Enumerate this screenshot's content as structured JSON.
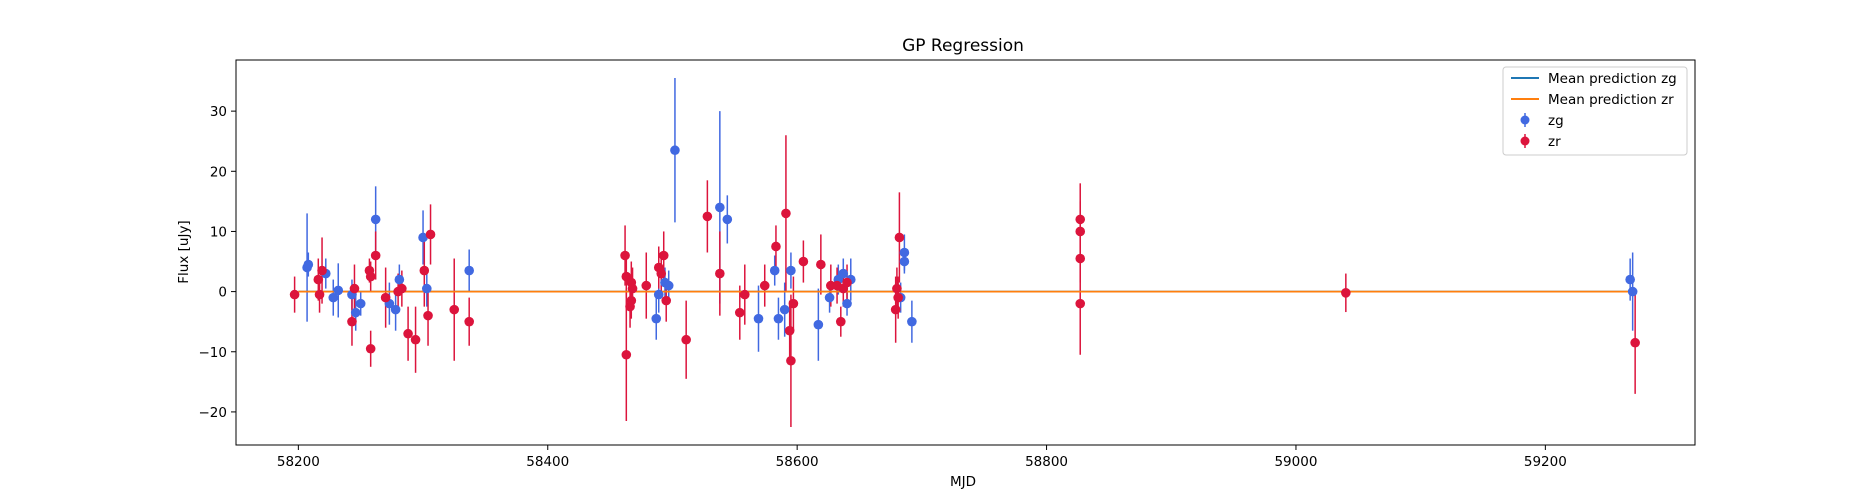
{
  "chart_data": {
    "type": "scatter",
    "title": "GP Regression",
    "xlabel": "MJD",
    "ylabel": "Flux [uJy]",
    "xlim": [
      58150,
      59320
    ],
    "ylim": [
      -25.5,
      38.5
    ],
    "xticks": [
      58200,
      58400,
      58600,
      58800,
      59000,
      59200
    ],
    "yticks": [
      -20,
      -10,
      0,
      10,
      20,
      30
    ],
    "grid": false,
    "legend_position": "top-right",
    "lines": [
      {
        "name": "Mean prediction zg",
        "color": "#1f77b4",
        "x": [
          58200,
          59270
        ],
        "y": [
          0,
          0
        ]
      },
      {
        "name": "Mean prediction zr",
        "color": "#ff7f0e",
        "x": [
          58200,
          59270
        ],
        "y": [
          0,
          0
        ]
      }
    ],
    "series": [
      {
        "name": "zg",
        "color": "#4169e1",
        "points": [
          {
            "x": 58207,
            "y": 4.0,
            "err": 9.0
          },
          {
            "x": 58208,
            "y": 4.5,
            "err": 2.0
          },
          {
            "x": 58222,
            "y": 3.0,
            "err": 2.5
          },
          {
            "x": 58228,
            "y": -1.0,
            "err": 3.0
          },
          {
            "x": 58232,
            "y": 0.2,
            "err": 4.5
          },
          {
            "x": 58243,
            "y": -0.5,
            "err": 2.5
          },
          {
            "x": 58246,
            "y": -3.5,
            "err": 3.0
          },
          {
            "x": 58250,
            "y": -2.0,
            "err": 2.0
          },
          {
            "x": 58262,
            "y": 12.0,
            "err": 5.5
          },
          {
            "x": 58273,
            "y": -2.0,
            "err": 3.5
          },
          {
            "x": 58278,
            "y": -3.0,
            "err": 3.5
          },
          {
            "x": 58281,
            "y": 2.0,
            "err": 2.5
          },
          {
            "x": 58300,
            "y": 9.0,
            "err": 4.5
          },
          {
            "x": 58303,
            "y": 0.5,
            "err": 3.0
          },
          {
            "x": 58337,
            "y": 3.5,
            "err": 3.5
          },
          {
            "x": 58487,
            "y": -4.5,
            "err": 3.5
          },
          {
            "x": 58489,
            "y": -0.5,
            "err": 3.0
          },
          {
            "x": 58494,
            "y": 1.5,
            "err": 2.5
          },
          {
            "x": 58497,
            "y": 1.0,
            "err": 2.5
          },
          {
            "x": 58502,
            "y": 23.5,
            "err": 12.0
          },
          {
            "x": 58538,
            "y": 14.0,
            "err": 16.0
          },
          {
            "x": 58544,
            "y": 12.0,
            "err": 4.0
          },
          {
            "x": 58569,
            "y": -4.5,
            "err": 5.5
          },
          {
            "x": 58582,
            "y": 3.5,
            "err": 2.5
          },
          {
            "x": 58585,
            "y": -4.5,
            "err": 3.5
          },
          {
            "x": 58590,
            "y": -3.0,
            "err": 4.5
          },
          {
            "x": 58595,
            "y": 3.5,
            "err": 3.0
          },
          {
            "x": 58617,
            "y": -5.5,
            "err": 6.0
          },
          {
            "x": 58626,
            "y": -1.0,
            "err": 2.5
          },
          {
            "x": 58633,
            "y": 2.0,
            "err": 2.5
          },
          {
            "x": 58637,
            "y": 3.0,
            "err": 2.5
          },
          {
            "x": 58640,
            "y": -2.0,
            "err": 2.0
          },
          {
            "x": 58643,
            "y": 2.0,
            "err": 3.5
          },
          {
            "x": 58683,
            "y": -1.0,
            "err": 2.5
          },
          {
            "x": 58686,
            "y": 6.5,
            "err": 3.0
          },
          {
            "x": 58686,
            "y": 5.0,
            "err": 2.0
          },
          {
            "x": 58692,
            "y": -5.0,
            "err": 3.5
          },
          {
            "x": 59268,
            "y": 2.0,
            "err": 3.5
          },
          {
            "x": 59270,
            "y": 0.0,
            "err": 6.5
          }
        ]
      },
      {
        "name": "zr",
        "color": "#dc143c",
        "points": [
          {
            "x": 58197,
            "y": -0.5,
            "err": 3.0
          },
          {
            "x": 58216,
            "y": 2.0,
            "err": 3.5
          },
          {
            "x": 58217,
            "y": -0.5,
            "err": 3.0
          },
          {
            "x": 58219,
            "y": 3.5,
            "err": 5.5
          },
          {
            "x": 58243,
            "y": -5.0,
            "err": 4.0
          },
          {
            "x": 58245,
            "y": 0.5,
            "err": 4.0
          },
          {
            "x": 58257,
            "y": 3.5,
            "err": 2.0
          },
          {
            "x": 58258,
            "y": 2.5,
            "err": 2.5
          },
          {
            "x": 58258,
            "y": -9.5,
            "err": 3.0
          },
          {
            "x": 58262,
            "y": 6.0,
            "err": 4.0
          },
          {
            "x": 58270,
            "y": -1.0,
            "err": 5.0
          },
          {
            "x": 58280,
            "y": 0.0,
            "err": 3.0
          },
          {
            "x": 58283,
            "y": 0.5,
            "err": 3.0
          },
          {
            "x": 58288,
            "y": -7.0,
            "err": 4.5
          },
          {
            "x": 58294,
            "y": -8.0,
            "err": 5.5
          },
          {
            "x": 58301,
            "y": 3.5,
            "err": 6.0
          },
          {
            "x": 58304,
            "y": -4.0,
            "err": 5.0
          },
          {
            "x": 58306,
            "y": 9.5,
            "err": 5.0
          },
          {
            "x": 58325,
            "y": -3.0,
            "err": 8.5
          },
          {
            "x": 58337,
            "y": -5.0,
            "err": 4.0
          },
          {
            "x": 58462,
            "y": 6.0,
            "err": 5.0
          },
          {
            "x": 58463,
            "y": 2.5,
            "err": 3.5
          },
          {
            "x": 58463,
            "y": -10.5,
            "err": 11.0
          },
          {
            "x": 58466,
            "y": -2.5,
            "err": 3.5
          },
          {
            "x": 58467,
            "y": 1.5,
            "err": 3.5
          },
          {
            "x": 58467,
            "y": -1.5,
            "err": 3.0
          },
          {
            "x": 58468,
            "y": 0.5,
            "err": 3.5
          },
          {
            "x": 58479,
            "y": 1.0,
            "err": 5.5
          },
          {
            "x": 58489,
            "y": 4.0,
            "err": 3.5
          },
          {
            "x": 58491,
            "y": 3.0,
            "err": 3.0
          },
          {
            "x": 58493,
            "y": 6.0,
            "err": 4.0
          },
          {
            "x": 58495,
            "y": -1.5,
            "err": 3.5
          },
          {
            "x": 58511,
            "y": -8.0,
            "err": 6.5
          },
          {
            "x": 58528,
            "y": 12.5,
            "err": 6.0
          },
          {
            "x": 58538,
            "y": 3.0,
            "err": 7.0
          },
          {
            "x": 58554,
            "y": -3.5,
            "err": 4.5
          },
          {
            "x": 58558,
            "y": -0.5,
            "err": 5.0
          },
          {
            "x": 58574,
            "y": 1.0,
            "err": 3.5
          },
          {
            "x": 58583,
            "y": 7.5,
            "err": 3.5
          },
          {
            "x": 58591,
            "y": 13.0,
            "err": 13.0
          },
          {
            "x": 58594,
            "y": -6.5,
            "err": 5.0
          },
          {
            "x": 58595,
            "y": -11.5,
            "err": 11.0
          },
          {
            "x": 58597,
            "y": -2.0,
            "err": 4.5
          },
          {
            "x": 58605,
            "y": 5.0,
            "err": 3.5
          },
          {
            "x": 58619,
            "y": 4.5,
            "err": 5.0
          },
          {
            "x": 58627,
            "y": 1.0,
            "err": 3.5
          },
          {
            "x": 58632,
            "y": 1.0,
            "err": 3.0
          },
          {
            "x": 58635,
            "y": -5.0,
            "err": 2.5
          },
          {
            "x": 58637,
            "y": 0.5,
            "err": 3.0
          },
          {
            "x": 58640,
            "y": 1.5,
            "err": 3.0
          },
          {
            "x": 58679,
            "y": -3.0,
            "err": 5.5
          },
          {
            "x": 58680,
            "y": 0.5,
            "err": 3.5
          },
          {
            "x": 58681,
            "y": -1.0,
            "err": 3.5
          },
          {
            "x": 58682,
            "y": 9.0,
            "err": 7.5
          },
          {
            "x": 58827,
            "y": 12.0,
            "err": 6.0
          },
          {
            "x": 58827,
            "y": 10.0,
            "err": 5.0
          },
          {
            "x": 58827,
            "y": 5.5,
            "err": 4.0
          },
          {
            "x": 58827,
            "y": -2.0,
            "err": 8.5
          },
          {
            "x": 59040,
            "y": -0.2,
            "err": 3.2
          },
          {
            "x": 59272,
            "y": -8.5,
            "err": 8.5
          }
        ]
      }
    ]
  }
}
